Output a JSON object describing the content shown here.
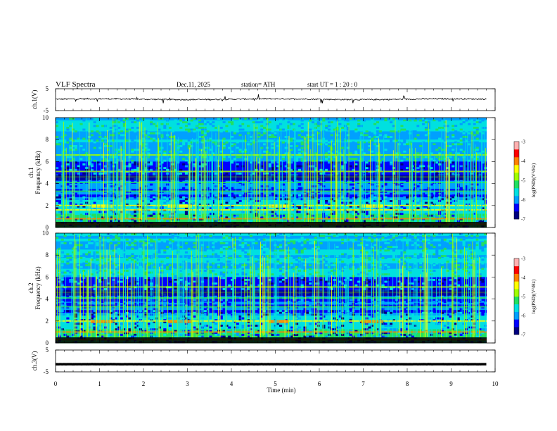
{
  "header": {
    "title": "VLF  Spectra",
    "date": "Dec.11, 2025",
    "station": "station= ATH",
    "start_ut": "start  UT  =   1  : 20 : 0"
  },
  "chart_data": [
    {
      "type": "line",
      "ylabel": "ch.1(V)",
      "ylim": [
        -5,
        5
      ],
      "yticks": [
        "5",
        "-5"
      ],
      "xlim": [
        0,
        10
      ],
      "series": [
        {
          "baseline": 0.2,
          "noise_amplitude": 0.6,
          "color": "#000000"
        }
      ]
    },
    {
      "type": "heatmap",
      "ylabel": "ch.1\nFrequency (kHz)",
      "ylim": [
        0,
        10
      ],
      "yticks": [
        "0",
        "2",
        "4",
        "6",
        "8",
        "10"
      ],
      "xlim": [
        0,
        10
      ],
      "colorbar": {
        "label": "log(PSD)(V²/Hz)",
        "range": [
          -7,
          -3
        ],
        "ticks": [
          "-3",
          "-4",
          "-5",
          "-6",
          "-7"
        ]
      },
      "bands_khz": [
        0.3,
        0.8,
        1.6,
        2.0,
        3.3,
        4.1,
        4.6,
        5.1,
        6.6
      ],
      "sferic_activity": "strong vertical broadband impulses across 0–10 kHz"
    },
    {
      "type": "heatmap",
      "ylabel": "ch.2\nFrequency (kHz)",
      "ylim": [
        0,
        10
      ],
      "yticks": [
        "0",
        "2",
        "4",
        "6",
        "8",
        "10"
      ],
      "xlim": [
        0,
        10
      ],
      "colorbar": {
        "label": "log(PSD)(V²/Hz)",
        "range": [
          -7,
          -3
        ],
        "ticks": [
          "-3",
          "-4",
          "-5",
          "-6",
          "-7"
        ]
      },
      "bands_khz": [
        0.3,
        1.0,
        2.0,
        3.3,
        4.1,
        4.6,
        5.1
      ],
      "sferic_activity": "strong vertical broadband impulses across 0–10 kHz"
    },
    {
      "type": "line",
      "ylabel": "ch.3(V)",
      "ylim": [
        -5,
        5
      ],
      "yticks": [
        "5",
        "-5"
      ],
      "xlim": [
        0,
        10
      ],
      "series": [
        {
          "baseline": -1.5,
          "noise_amplitude": 0.05,
          "color": "#000000"
        }
      ]
    }
  ],
  "xaxis": {
    "label": "Time  (min)",
    "ticks": [
      "0",
      "1",
      "2",
      "3",
      "4",
      "5",
      "6",
      "7",
      "8",
      "9",
      "10"
    ]
  },
  "colors": {
    "colormap": [
      "#000080",
      "#0000ff",
      "#00a0ff",
      "#00e0e0",
      "#20e060",
      "#a0ff00",
      "#ffff00",
      "#ff8000",
      "#ff0000",
      "#ffb0b0"
    ]
  }
}
